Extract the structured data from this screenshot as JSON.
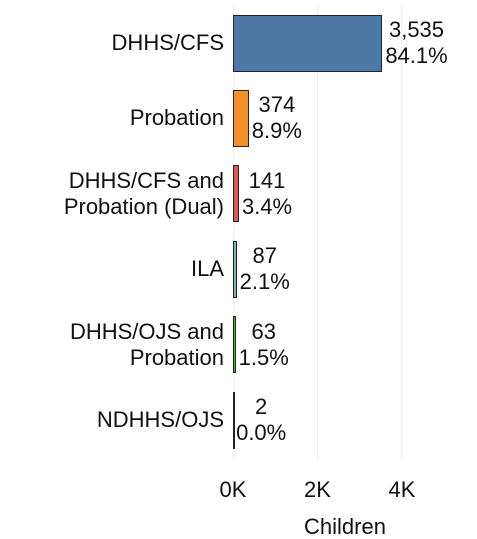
{
  "chart_data": {
    "type": "bar",
    "orientation": "horizontal",
    "categories": [
      "DHHS/CFS",
      "Probation",
      "DHHS/CFS and\nProbation (Dual)",
      "ILA",
      "DHHS/OJS and\nProbation",
      "NDHHS/OJS"
    ],
    "values": [
      3535,
      374,
      141,
      87,
      63,
      2
    ],
    "value_labels": [
      "3,535",
      "374",
      "141",
      "87",
      "63",
      "2"
    ],
    "percents": [
      84.1,
      8.9,
      3.4,
      2.1,
      1.5,
      0.0
    ],
    "percent_labels": [
      "84.1%",
      "8.9%",
      "3.4%",
      "2.1%",
      "1.5%",
      "0.0%"
    ],
    "colors": [
      "#4e79a7",
      "#f28e2b",
      "#e15759",
      "#76b7b2",
      "#59a14f",
      "#edc948"
    ],
    "xlim": [
      0,
      5800
    ],
    "xticks": [
      {
        "value": 0,
        "label": "0K"
      },
      {
        "value": 2000,
        "label": "2K"
      },
      {
        "value": 4000,
        "label": "4K"
      }
    ],
    "xlabel": "Children",
    "grid": true
  }
}
